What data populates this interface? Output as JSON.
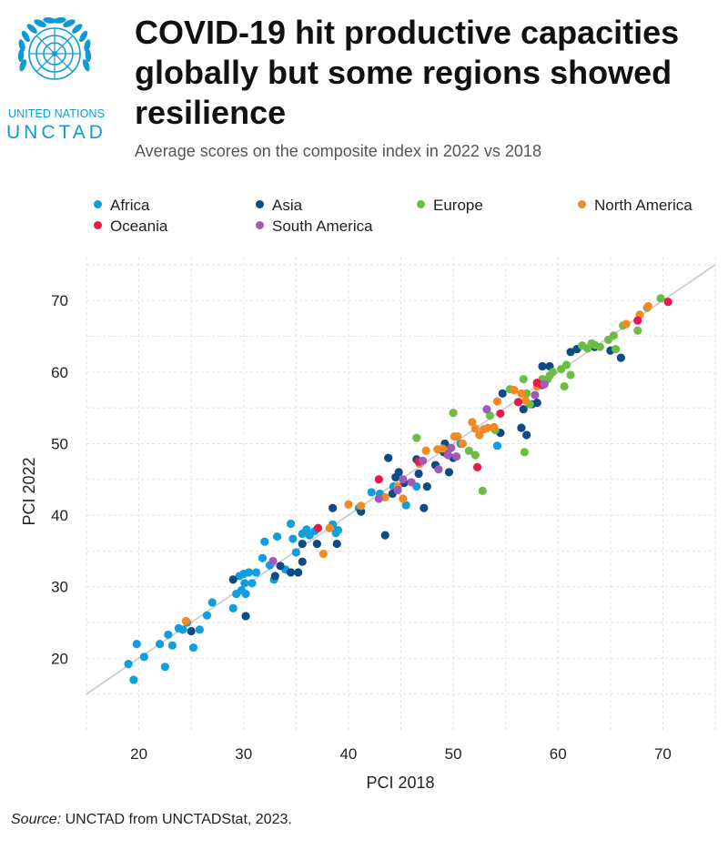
{
  "logo": {
    "line1": "UNITED NATIONS",
    "line2": "UNCTAD",
    "emblem_icon": "un-emblem-icon"
  },
  "title": "COVID-19 hit productive capacities globally but some regions showed resilience",
  "subtitle": "Average scores on the composite index in 2022 vs 2018",
  "source_label": "Source:",
  "source_text": " UNCTAD from UNCTADStat, 2023.",
  "colors": {
    "Africa": "#0e9fdc",
    "Asia": "#0d4b85",
    "Europe": "#6cbd45",
    "North America": "#f08a24",
    "Oceania": "#e5194d",
    "South America": "#a25ab8",
    "grid": "#e2e2e2",
    "trend": "#c8c8c8"
  },
  "chart_data": {
    "type": "scatter",
    "xlabel": "PCI 2018",
    "ylabel": "PCI 2022",
    "xlim": [
      15,
      75
    ],
    "ylim": [
      10,
      76
    ],
    "xticks": [
      20,
      30,
      40,
      50,
      60,
      70
    ],
    "yticks": [
      20,
      30,
      40,
      50,
      60,
      70
    ],
    "grid": true,
    "legend_position": "top",
    "reference_line": "y = x",
    "series": [
      {
        "name": "Africa",
        "points": [
          [
            19,
            19.2
          ],
          [
            19.5,
            17
          ],
          [
            19.8,
            22
          ],
          [
            20.5,
            20.2
          ],
          [
            22,
            22
          ],
          [
            22.5,
            18.8
          ],
          [
            22.8,
            23.3
          ],
          [
            23.2,
            21.8
          ],
          [
            23.8,
            24.2
          ],
          [
            24.2,
            24
          ],
          [
            24.6,
            25
          ],
          [
            25.2,
            21.5
          ],
          [
            25.8,
            24
          ],
          [
            26.5,
            26
          ],
          [
            27,
            27.8
          ],
          [
            29,
            27
          ],
          [
            29.3,
            29
          ],
          [
            29.6,
            31.5
          ],
          [
            29.8,
            29.5
          ],
          [
            30,
            31.8
          ],
          [
            30.1,
            30.5
          ],
          [
            30.2,
            29
          ],
          [
            30.5,
            32
          ],
          [
            30.8,
            30.5
          ],
          [
            31.2,
            32
          ],
          [
            31.8,
            34
          ],
          [
            32,
            36.3
          ],
          [
            32.5,
            33
          ],
          [
            32.9,
            31
          ],
          [
            33.2,
            37
          ],
          [
            34,
            32.4
          ],
          [
            34.5,
            38.8
          ],
          [
            34.7,
            36.7
          ],
          [
            35,
            34.8
          ],
          [
            35.6,
            37.4
          ],
          [
            36,
            38
          ],
          [
            36.3,
            37.2
          ],
          [
            36.8,
            37.8
          ],
          [
            38.5,
            38.7
          ],
          [
            38.8,
            37.5
          ],
          [
            39,
            37.9
          ],
          [
            41,
            41
          ],
          [
            42.2,
            43.2
          ],
          [
            43,
            43
          ],
          [
            44.3,
            44
          ],
          [
            45.5,
            41.4
          ],
          [
            46.5,
            44
          ],
          [
            50.7,
            50
          ],
          [
            54.2,
            49.7
          ]
        ]
      },
      {
        "name": "Asia",
        "points": [
          [
            25,
            23.8
          ],
          [
            29,
            31
          ],
          [
            30.2,
            25.9
          ],
          [
            33,
            31.5
          ],
          [
            33.5,
            32.9
          ],
          [
            34.5,
            32
          ],
          [
            35.2,
            32
          ],
          [
            35.6,
            33.5
          ],
          [
            35.6,
            36
          ],
          [
            37,
            36
          ],
          [
            38.5,
            41
          ],
          [
            38.9,
            36
          ],
          [
            41.2,
            40.5
          ],
          [
            43.5,
            37.2
          ],
          [
            43.8,
            48
          ],
          [
            44.2,
            43
          ],
          [
            44.5,
            45.3
          ],
          [
            44.8,
            46
          ],
          [
            45.3,
            44.5
          ],
          [
            46.5,
            47.8
          ],
          [
            46.7,
            45.8
          ],
          [
            47.2,
            41
          ],
          [
            47.5,
            44
          ],
          [
            48.3,
            47
          ],
          [
            49.1,
            48.8
          ],
          [
            49.2,
            50
          ],
          [
            49.6,
            46
          ],
          [
            50,
            48
          ],
          [
            54.5,
            51.5
          ],
          [
            54.7,
            57
          ],
          [
            56.5,
            52.2
          ],
          [
            56.7,
            54.8
          ],
          [
            57,
            51.2
          ],
          [
            57.5,
            55.5
          ],
          [
            58,
            55.7
          ],
          [
            58.5,
            60.8
          ],
          [
            59.2,
            60.8
          ],
          [
            61.2,
            62.8
          ],
          [
            61.8,
            63.2
          ],
          [
            63.5,
            63.5
          ],
          [
            65,
            63
          ],
          [
            66,
            62
          ]
        ]
      },
      {
        "name": "Europe",
        "points": [
          [
            46.5,
            50.8
          ],
          [
            50,
            54.3
          ],
          [
            51.5,
            49
          ],
          [
            52.1,
            48.4
          ],
          [
            52.8,
            43.4
          ],
          [
            53.5,
            53.9
          ],
          [
            54,
            51.9
          ],
          [
            55.4,
            57.6
          ],
          [
            56.7,
            59
          ],
          [
            56.8,
            48.8
          ],
          [
            57,
            57
          ],
          [
            57.3,
            55.5
          ],
          [
            58.5,
            59
          ],
          [
            59,
            59
          ],
          [
            59.2,
            59.5
          ],
          [
            59.5,
            60
          ],
          [
            60.3,
            60.4
          ],
          [
            60.6,
            58
          ],
          [
            60.8,
            61
          ],
          [
            61.2,
            59.6
          ],
          [
            62.3,
            63.7
          ],
          [
            62.8,
            63.3
          ],
          [
            63.2,
            64
          ],
          [
            63.5,
            63.8
          ],
          [
            64,
            63.5
          ],
          [
            64.8,
            64.5
          ],
          [
            65.3,
            65.1
          ],
          [
            65.5,
            63.2
          ],
          [
            66.2,
            66.5
          ],
          [
            67.6,
            65.8
          ],
          [
            68.5,
            69
          ],
          [
            69.8,
            70.3
          ]
        ]
      },
      {
        "name": "North America",
        "points": [
          [
            24.5,
            25.2
          ],
          [
            37.6,
            34.6
          ],
          [
            38.2,
            38.2
          ],
          [
            40,
            41.5
          ],
          [
            41.2,
            41.3
          ],
          [
            43.5,
            42.5
          ],
          [
            44.7,
            44
          ],
          [
            45.2,
            42.3
          ],
          [
            46.8,
            47.2
          ],
          [
            47.4,
            49
          ],
          [
            48.5,
            49.2
          ],
          [
            49,
            49.3
          ],
          [
            50.1,
            51
          ],
          [
            50.4,
            51
          ],
          [
            50.9,
            50
          ],
          [
            51.8,
            53
          ],
          [
            52.1,
            52.1
          ],
          [
            52.5,
            51.2
          ],
          [
            52.9,
            52
          ],
          [
            53.3,
            52.2
          ],
          [
            53.9,
            52.3
          ],
          [
            54.2,
            55.9
          ],
          [
            55.8,
            57.5
          ],
          [
            56.5,
            57
          ],
          [
            56.9,
            56
          ],
          [
            58,
            58
          ],
          [
            66.5,
            66.7
          ],
          [
            67.8,
            68
          ],
          [
            68.6,
            69.2
          ]
        ]
      },
      {
        "name": "Oceania",
        "points": [
          [
            37.1,
            38.2
          ],
          [
            42.9,
            45
          ],
          [
            46.7,
            47.5
          ],
          [
            52.3,
            46.7
          ],
          [
            54.5,
            54.2
          ],
          [
            56.2,
            55.8
          ],
          [
            58,
            58.5
          ],
          [
            58.5,
            58.2
          ],
          [
            67.6,
            67.2
          ],
          [
            70.5,
            69.8
          ]
        ]
      },
      {
        "name": "South America",
        "points": [
          [
            32.8,
            33.6
          ],
          [
            42.9,
            42.3
          ],
          [
            44.7,
            43.5
          ],
          [
            45.2,
            45
          ],
          [
            46,
            44.6
          ],
          [
            47.1,
            47.6
          ],
          [
            48.6,
            46.4
          ],
          [
            49.5,
            48.4
          ],
          [
            49.8,
            49.4
          ],
          [
            50.3,
            48.2
          ],
          [
            53.2,
            54.8
          ],
          [
            57.8,
            56.8
          ],
          [
            58.7,
            58.3
          ]
        ]
      }
    ]
  }
}
